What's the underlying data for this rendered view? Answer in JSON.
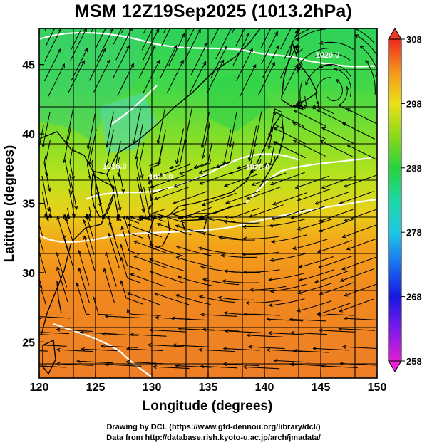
{
  "title": "MSM 12Z19Sep2025 (1013.2hPa)",
  "x_axis": {
    "label": "Longitude (degrees)",
    "ticks": [
      120,
      125,
      130,
      135,
      140,
      145,
      150
    ],
    "range": [
      120,
      150
    ]
  },
  "y_axis": {
    "label": "Latitude  (degrees)",
    "ticks": [
      25,
      30,
      35,
      40,
      45
    ],
    "range": [
      22.4,
      47.6
    ]
  },
  "colorbar": {
    "ticks": [
      258,
      268,
      278,
      288,
      298,
      308
    ],
    "range": [
      258,
      308
    ]
  },
  "contour_labels": [
    {
      "text": "1020.0",
      "lon": 145.6,
      "lat": 45.5
    },
    {
      "text": "1016.0",
      "lon": 130.8,
      "lat": 36.7
    },
    {
      "text": "1020.0",
      "lon": 139.4,
      "lat": 37.4
    },
    {
      "text": "1016.0",
      "lon": 126.7,
      "lat": 37.5
    }
  ],
  "credits": [
    "Drawing by DCL (https://www.gfd-dennou.org/library/dcl/)",
    "Data from http://database.rish.kyoto-u.ac.jp/arch/jmadata/"
  ]
}
